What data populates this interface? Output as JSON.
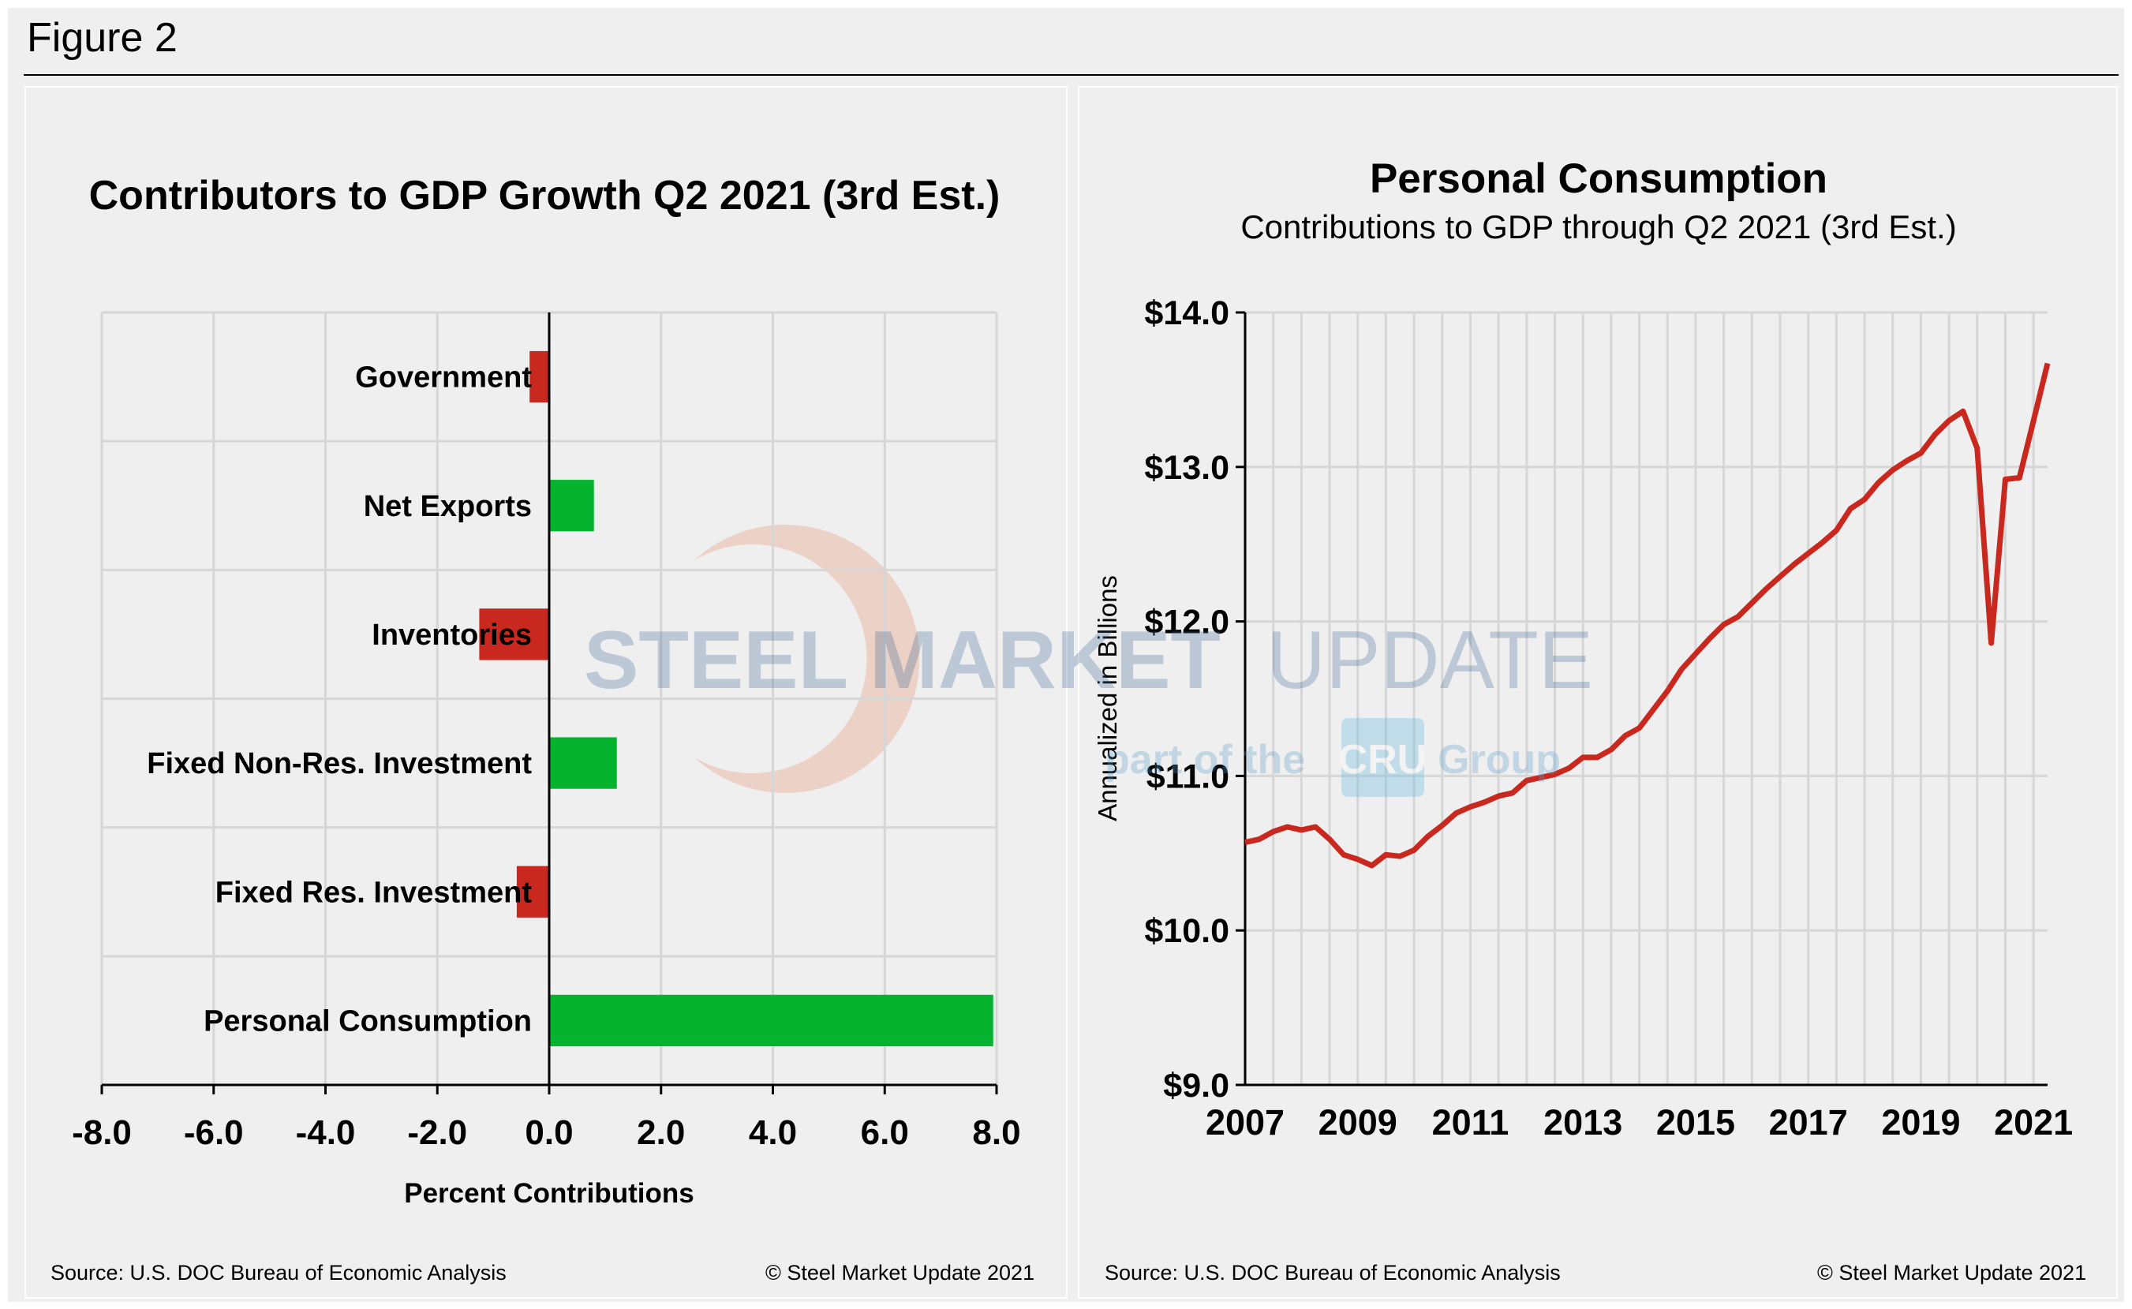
{
  "figure_label": "Figure 2",
  "watermark": {
    "line1_bold": "STEEL MARKET",
    "line1_light": "UPDATE",
    "line2_a": "part of the",
    "line2_logo": "CRU",
    "line2_b": "Group"
  },
  "chart_data": [
    {
      "type": "bar",
      "orientation": "horizontal",
      "title": "Contributors to GDP Growth Q2 2021 (3rd Est.)",
      "xlabel": "Percent Contributions",
      "ylabel": "",
      "xlim": [
        -8,
        8
      ],
      "xticks": [
        "-8.0",
        "-6.0",
        "-4.0",
        "-2.0",
        "0.0",
        "2.0",
        "4.0",
        "6.0",
        "8.0"
      ],
      "grid": true,
      "categories": [
        "Government",
        "Net Exports",
        "Inventories",
        "Fixed Non-Res. Investment",
        "Fixed Res. Investment",
        "Personal Consumption"
      ],
      "values": [
        -0.35,
        0.8,
        -1.25,
        1.21,
        -0.58,
        7.94
      ],
      "colors": {
        "positive": "#05b32e",
        "negative": "#c8281e"
      },
      "source": "Source: U.S. DOC Bureau of Economic Analysis",
      "copyright": "© Steel Market Update 2021"
    },
    {
      "type": "line",
      "title": "Personal Consumption",
      "subtitle": "Contributions to GDP through Q2 2021 (3rd Est.)",
      "xlabel": "",
      "ylabel": "Annualized in Billions",
      "ylim": [
        9,
        14
      ],
      "yticks": [
        "$9.0",
        "$10.0",
        "$11.0",
        "$12.0",
        "$13.0",
        "$14.0"
      ],
      "xticks": [
        "2007",
        "2009",
        "2011",
        "2013",
        "2015",
        "2017",
        "2019",
        "2021"
      ],
      "grid": true,
      "line_color": "#c8281e",
      "x_start": "2007 Q1",
      "x_end": "2021 Q2",
      "frequency": "quarterly",
      "values": [
        10.57,
        10.59,
        10.64,
        10.67,
        10.65,
        10.67,
        10.59,
        10.49,
        10.46,
        10.42,
        10.49,
        10.48,
        10.52,
        10.61,
        10.68,
        10.76,
        10.8,
        10.83,
        10.87,
        10.89,
        10.97,
        10.99,
        11.01,
        11.05,
        11.12,
        11.12,
        11.17,
        11.26,
        11.31,
        11.43,
        11.55,
        11.69,
        11.79,
        11.89,
        11.98,
        12.03,
        12.12,
        12.21,
        12.29,
        12.37,
        12.44,
        12.51,
        12.59,
        12.73,
        12.79,
        12.9,
        12.98,
        13.04,
        13.09,
        13.21,
        13.3,
        13.36,
        13.12,
        11.86,
        12.92,
        12.93,
        13.3,
        13.67
      ],
      "source": "Source: U.S. DOC Bureau of Economic Analysis",
      "copyright": "© Steel Market Update 2021"
    }
  ]
}
